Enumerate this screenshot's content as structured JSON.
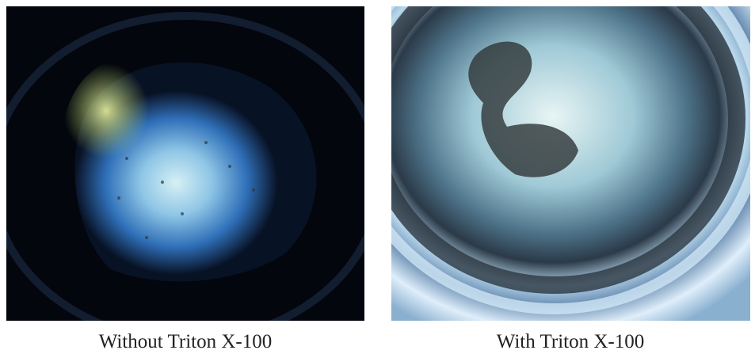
{
  "figure": {
    "panels": [
      {
        "caption": "Without Triton X-100"
      },
      {
        "caption": "With Triton X-100"
      }
    ]
  }
}
